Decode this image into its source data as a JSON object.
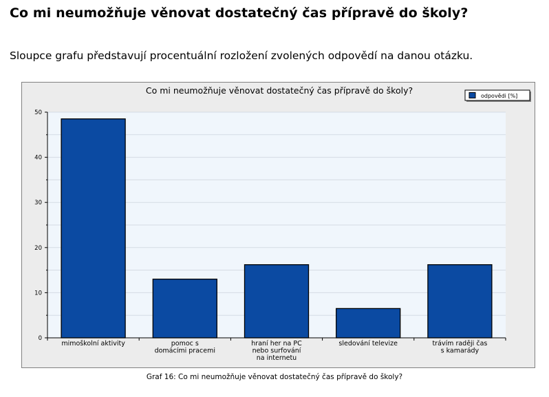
{
  "page": {
    "heading": "Co mi neumožňuje věnovat dostatečný čas přípravě do školy?",
    "intro": "Sloupce grafu představují procentuální rozložení zvolených odpovědí na danou otázku.",
    "caption": "Graf 16: Co mi neumožňuje věnovat dostatečný čas přípravě do školy?"
  },
  "chart_data": {
    "type": "bar",
    "title": "Co mi neumožňuje věnovat dostatečný čas přípravě do školy?",
    "categories": [
      [
        "mimoškolní aktivity"
      ],
      [
        "pomoc s",
        "domácími pracemi"
      ],
      [
        "hraní her na PC",
        "nebo surfování",
        "na internetu"
      ],
      [
        "sledování televize"
      ],
      [
        "trávím raději čas",
        "s kamarády"
      ]
    ],
    "series": [
      {
        "name": "odpovědi [%]",
        "values": [
          48.5,
          13.0,
          16.2,
          6.5,
          16.2
        ]
      }
    ],
    "ylim": [
      0,
      50
    ],
    "yticks": [
      0,
      10,
      20,
      30,
      40,
      50
    ],
    "grid": true,
    "legend_position": "top-right",
    "colors": {
      "bar": "#0b4aa2",
      "plot_bg": "#f0f6fc",
      "frame_bg": "#ececec"
    }
  }
}
